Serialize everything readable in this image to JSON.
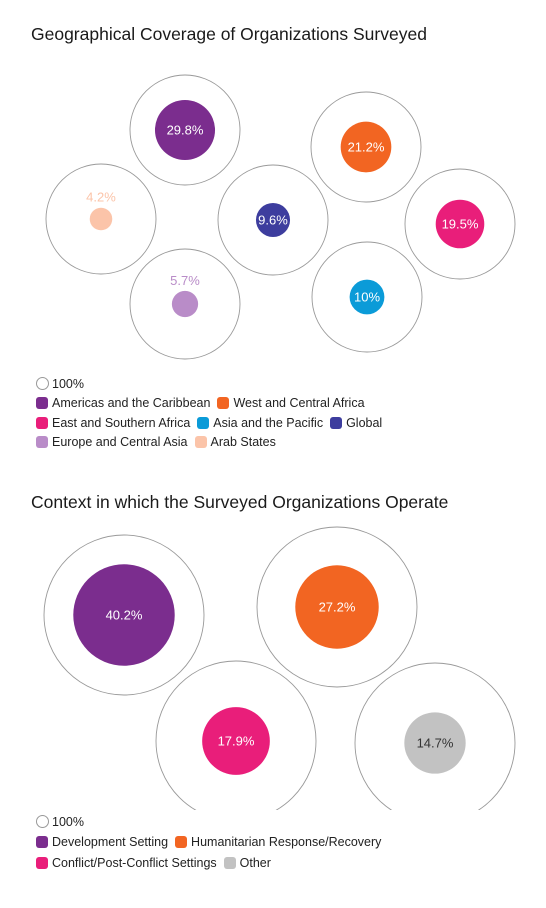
{
  "chart_data": [
    {
      "type": "bubble",
      "title": "Geographical Coverage of Organizations Surveyed",
      "reference_label": "100%",
      "series": [
        {
          "name": "Americas and the Caribbean",
          "value": 29.8,
          "label": "29.8%",
          "color": "#7b2d8e"
        },
        {
          "name": "West and Central Africa",
          "value": 21.2,
          "label": "21.2%",
          "color": "#f26522"
        },
        {
          "name": "East and Southern Africa",
          "value": 19.5,
          "label": "19.5%",
          "color": "#e91e7a"
        },
        {
          "name": "Asia and the Pacific",
          "value": 10,
          "label": "10%",
          "color": "#0b9bd8"
        },
        {
          "name": "Global",
          "value": 9.6,
          "label": "9.6%",
          "color": "#3d3d9e"
        },
        {
          "name": "Europe and Central Asia",
          "value": 5.7,
          "label": "5.7%",
          "color": "#b98cc8"
        },
        {
          "name": "Arab States",
          "value": 4.2,
          "label": "4.2%",
          "color": "#fbc4a9"
        }
      ]
    },
    {
      "type": "bubble",
      "title": "Context in which the Surveyed Organizations Operate",
      "reference_label": "100%",
      "series": [
        {
          "name": "Development Setting",
          "value": 40.2,
          "label": "40.2%",
          "color": "#7b2d8e"
        },
        {
          "name": "Humanitarian Response/Recovery",
          "value": 27.2,
          "label": "27.2%",
          "color": "#f26522"
        },
        {
          "name": "Conflict/Post-Conflict Settings",
          "value": 17.9,
          "label": "17.9%",
          "color": "#e91e7a"
        },
        {
          "name": "Other",
          "value": 14.7,
          "label": "14.7%",
          "color": "#c2c2c2"
        }
      ]
    }
  ]
}
